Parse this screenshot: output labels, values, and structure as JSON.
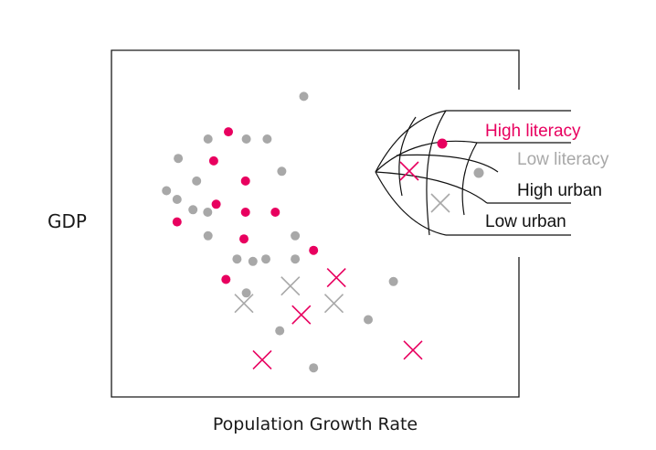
{
  "chart_data": {
    "type": "scatter",
    "title": "",
    "xlabel": "Population Growth Rate",
    "ylabel": "GDP",
    "xlim": [
      0,
      1
    ],
    "ylim": [
      0,
      1
    ],
    "grid": false,
    "legend_position": "right",
    "series": [
      {
        "name": "High urban, High literacy",
        "marker": "dot",
        "color": "#e8005f",
        "points": [
          {
            "x": 0.287,
            "y": 0.765
          },
          {
            "x": 0.251,
            "y": 0.681
          },
          {
            "x": 0.329,
            "y": 0.623
          },
          {
            "x": 0.257,
            "y": 0.556
          },
          {
            "x": 0.329,
            "y": 0.533
          },
          {
            "x": 0.402,
            "y": 0.533
          },
          {
            "x": 0.161,
            "y": 0.505
          },
          {
            "x": 0.325,
            "y": 0.456
          },
          {
            "x": 0.496,
            "y": 0.423
          },
          {
            "x": 0.281,
            "y": 0.339
          }
        ]
      },
      {
        "name": "High urban, Low literacy",
        "marker": "dot",
        "color": "#a8a8a8",
        "points": [
          {
            "x": 0.472,
            "y": 0.867
          },
          {
            "x": 0.237,
            "y": 0.744
          },
          {
            "x": 0.331,
            "y": 0.744
          },
          {
            "x": 0.382,
            "y": 0.744
          },
          {
            "x": 0.164,
            "y": 0.688
          },
          {
            "x": 0.418,
            "y": 0.651
          },
          {
            "x": 0.209,
            "y": 0.623
          },
          {
            "x": 0.135,
            "y": 0.595
          },
          {
            "x": 0.161,
            "y": 0.57
          },
          {
            "x": 0.236,
            "y": 0.533
          },
          {
            "x": 0.2,
            "y": 0.54
          },
          {
            "x": 0.237,
            "y": 0.465
          },
          {
            "x": 0.451,
            "y": 0.465
          },
          {
            "x": 0.308,
            "y": 0.398
          },
          {
            "x": 0.347,
            "y": 0.391
          },
          {
            "x": 0.379,
            "y": 0.398
          },
          {
            "x": 0.451,
            "y": 0.398
          },
          {
            "x": 0.331,
            "y": 0.3
          },
          {
            "x": 0.692,
            "y": 0.333
          },
          {
            "x": 0.63,
            "y": 0.223
          },
          {
            "x": 0.413,
            "y": 0.191
          },
          {
            "x": 0.496,
            "y": 0.084
          }
        ]
      },
      {
        "name": "Low urban, High literacy",
        "marker": "cross",
        "color": "#e8005f",
        "points": [
          {
            "x": 0.552,
            "y": 0.344
          },
          {
            "x": 0.466,
            "y": 0.237
          },
          {
            "x": 0.37,
            "y": 0.107
          },
          {
            "x": 0.74,
            "y": 0.135
          }
        ]
      },
      {
        "name": "Low urban, Low literacy",
        "marker": "cross",
        "color": "#a8a8a8",
        "points": [
          {
            "x": 0.439,
            "y": 0.32
          },
          {
            "x": 0.325,
            "y": 0.27
          },
          {
            "x": 0.546,
            "y": 0.27
          }
        ]
      }
    ],
    "legend": {
      "labels": [
        "High literacy",
        "Low literacy",
        "High urban",
        "Low urban"
      ],
      "label_colors": [
        "#e8005f",
        "#a8a8a8",
        "#111111",
        "#111111"
      ]
    }
  },
  "colors": {
    "accent": "#e8005f",
    "muted": "#a8a8a8",
    "ink": "#111111"
  }
}
